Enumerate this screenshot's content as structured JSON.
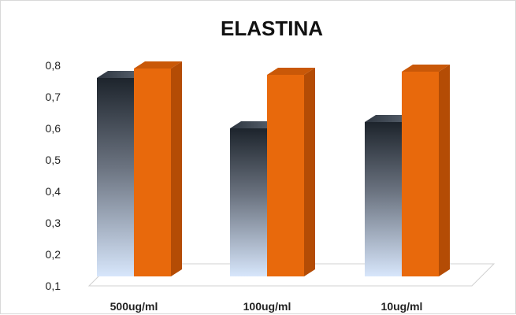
{
  "chart_data": {
    "type": "bar",
    "title": "ELASTINA",
    "categories": [
      "500ug/ml",
      "100ug/ml",
      "10ug/ml"
    ],
    "series": [
      {
        "values": [
          0.76,
          0.6,
          0.62
        ],
        "color": "#1f2833"
      },
      {
        "values": [
          0.79,
          0.77,
          0.78
        ],
        "color": "#e8690c"
      }
    ],
    "ylim": [
      0.1,
      0.8
    ],
    "yticks": [
      "0,1",
      "0,2",
      "0,3",
      "0,4",
      "0,5",
      "0,6",
      "0,7",
      "0,8"
    ],
    "grid": false,
    "legend": "none",
    "style": "3d-column"
  }
}
